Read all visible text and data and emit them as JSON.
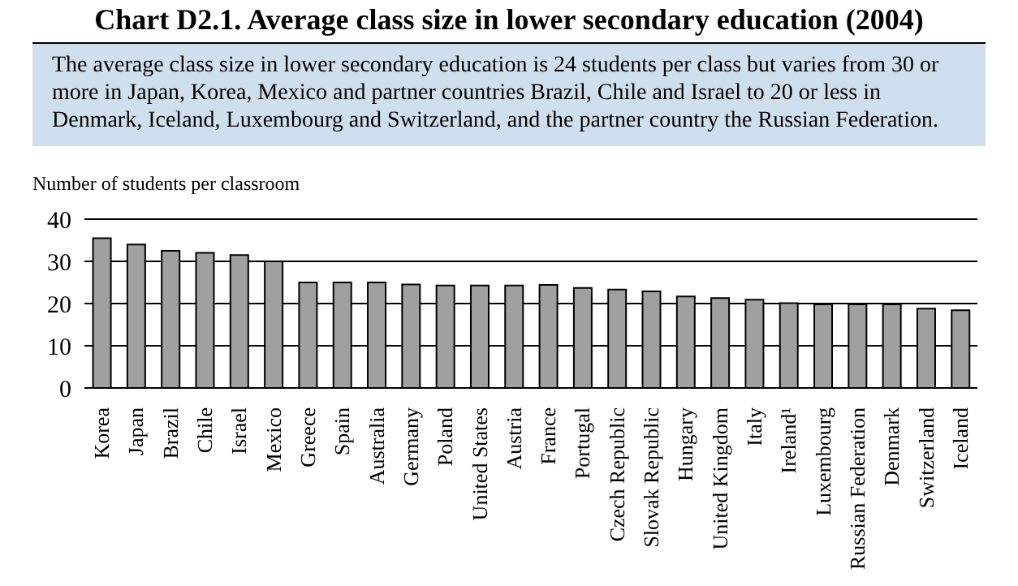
{
  "chart_data": {
    "type": "bar",
    "title": "Chart D2.1. Average class size in lower secondary education (2004)",
    "subtitle": "The average class size in lower secondary education is 24 students per class but varies from 30 or more in Japan, Korea, Mexico and partner countries Brazil, Chile and Israel to 20 or less in Denmark, Iceland, Luxembourg and Switzerland, and the partner country the Russian Federation.",
    "ylabel": "Number of students per classroom",
    "categories": [
      "Korea",
      "Japan",
      "Brazil",
      "Chile",
      "Israel",
      "Mexico",
      "Greece",
      "Spain",
      "Australia",
      "Germany",
      "Poland",
      "United States",
      "Austria",
      "France",
      "Portugal",
      "Czech Republic",
      "Slovak Republic",
      "Hungary",
      "United Kingdom",
      "Italy",
      "Ireland¹",
      "Luxembourg",
      "Russian Federation",
      "Denmark",
      "Switzerland",
      "Iceland"
    ],
    "values": [
      35.5,
      34,
      32.5,
      32,
      31.5,
      30,
      25,
      25,
      25,
      24.5,
      24.3,
      24.3,
      24.3,
      24.4,
      23.7,
      23.3,
      22.9,
      21.7,
      21.3,
      20.9,
      20.1,
      19.8,
      19.8,
      19.8,
      18.8,
      18.4
    ],
    "color": "#a0a0a0",
    "ylim": [
      0,
      40
    ],
    "yticks": [
      0,
      10,
      20,
      30,
      40
    ],
    "grid": "y"
  }
}
